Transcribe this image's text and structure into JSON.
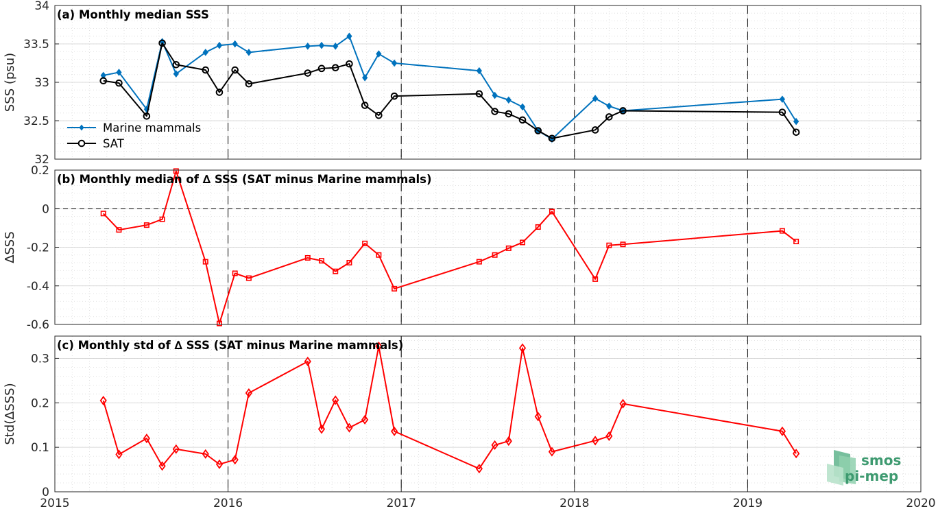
{
  "chart_data": [
    {
      "type": "line",
      "title": "(a) Monthly median SSS",
      "xlabel": "",
      "ylabel": "SSS (psu)",
      "xlim": [
        2015,
        2020
      ],
      "ylim": [
        32,
        34
      ],
      "yticks": [
        "32",
        "32.5",
        "33",
        "33.5",
        "34"
      ],
      "grid": true,
      "legend": "left",
      "series": [
        {
          "name": "Marine mammals",
          "color": "#0072bd",
          "marker": "diamond-filled",
          "x": [
            2015.28,
            2015.37,
            2015.53,
            2015.62,
            2015.7,
            2015.87,
            2015.95,
            2016.04,
            2016.12,
            2016.46,
            2016.54,
            2016.62,
            2016.7,
            2016.79,
            2016.87,
            2016.96,
            2017.45,
            2017.54,
            2017.62,
            2017.7,
            2017.79,
            2017.87,
            2018.12,
            2018.2,
            2018.28,
            2019.2,
            2019.28
          ],
          "y": [
            33.09,
            33.13,
            32.65,
            33.53,
            33.11,
            33.39,
            33.48,
            33.5,
            33.39,
            33.47,
            33.48,
            33.47,
            33.6,
            33.06,
            33.37,
            33.25,
            33.15,
            32.83,
            32.77,
            32.68,
            32.37,
            32.26,
            32.79,
            32.69,
            32.63,
            32.78,
            32.49
          ]
        },
        {
          "name": "SAT",
          "color": "#000000",
          "marker": "circle-open",
          "x": [
            2015.28,
            2015.37,
            2015.53,
            2015.62,
            2015.7,
            2015.87,
            2015.95,
            2016.04,
            2016.12,
            2016.46,
            2016.54,
            2016.62,
            2016.7,
            2016.79,
            2016.87,
            2016.96,
            2017.45,
            2017.54,
            2017.62,
            2017.7,
            2017.79,
            2017.87,
            2018.12,
            2018.2,
            2018.28,
            2019.2,
            2019.28
          ],
          "y": [
            33.02,
            32.99,
            32.56,
            33.51,
            33.23,
            33.16,
            32.87,
            33.16,
            32.98,
            33.12,
            33.18,
            33.19,
            33.24,
            32.7,
            32.57,
            32.82,
            32.85,
            32.62,
            32.59,
            32.51,
            32.37,
            32.27,
            32.38,
            32.55,
            32.63,
            32.61,
            32.35
          ]
        }
      ]
    },
    {
      "type": "line",
      "title": "(b) Monthly median of ∆ SSS (SAT minus Marine mammals)",
      "xlabel": "",
      "ylabel": "∆SSS",
      "xlim": [
        2015,
        2020
      ],
      "ylim": [
        -0.6,
        0.2
      ],
      "yticks": [
        "-0.6",
        "-0.4",
        "-0.2",
        "0",
        "0.2"
      ],
      "grid": true,
      "series": [
        {
          "color": "#ff0000",
          "marker": "square-open",
          "x": [
            2015.28,
            2015.37,
            2015.53,
            2015.62,
            2015.7,
            2015.87,
            2015.95,
            2016.04,
            2016.12,
            2016.46,
            2016.54,
            2016.62,
            2016.7,
            2016.79,
            2016.87,
            2016.96,
            2017.45,
            2017.54,
            2017.62,
            2017.7,
            2017.79,
            2017.87,
            2018.12,
            2018.2,
            2018.28,
            2019.2,
            2019.28
          ],
          "y": [
            -0.025,
            -0.11,
            -0.085,
            -0.055,
            0.195,
            -0.275,
            -0.595,
            -0.335,
            -0.36,
            -0.255,
            -0.27,
            -0.325,
            -0.28,
            -0.18,
            -0.24,
            -0.415,
            -0.275,
            -0.24,
            -0.205,
            -0.175,
            -0.095,
            -0.015,
            -0.365,
            -0.19,
            -0.185,
            -0.115,
            -0.17
          ]
        }
      ]
    },
    {
      "type": "line",
      "title": "(c) Monthly std of ∆ SSS (SAT minus Marine mammals)",
      "xlabel": "",
      "ylabel": "Std(∆SSS)",
      "xlim": [
        2015,
        2020
      ],
      "ylim": [
        0,
        0.35
      ],
      "yticks": [
        "0",
        "0.1",
        "0.2",
        "0.3"
      ],
      "xticks": [
        "2015",
        "2016",
        "2017",
        "2018",
        "2019",
        "2020"
      ],
      "grid": true,
      "series": [
        {
          "color": "#ff0000",
          "marker": "diamond-open",
          "x": [
            2015.28,
            2015.37,
            2015.53,
            2015.62,
            2015.7,
            2015.87,
            2015.95,
            2016.04,
            2016.12,
            2016.46,
            2016.54,
            2016.62,
            2016.7,
            2016.79,
            2016.87,
            2016.96,
            2017.45,
            2017.54,
            2017.62,
            2017.7,
            2017.79,
            2017.87,
            2018.12,
            2018.2,
            2018.28,
            2019.2,
            2019.28
          ],
          "y": [
            0.205,
            0.084,
            0.12,
            0.058,
            0.096,
            0.085,
            0.062,
            0.072,
            0.222,
            0.293,
            0.141,
            0.206,
            0.144,
            0.162,
            0.327,
            0.136,
            0.052,
            0.105,
            0.114,
            0.323,
            0.169,
            0.09,
            0.115,
            0.125,
            0.198,
            0.136,
            0.086
          ]
        }
      ]
    }
  ],
  "logo": {
    "line1": "smos",
    "line2": "pi-mep"
  }
}
